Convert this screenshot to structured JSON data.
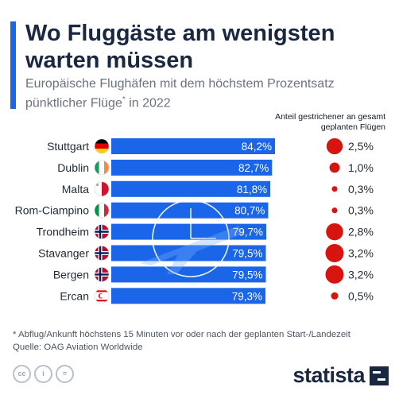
{
  "header": {
    "title": "Wo Fluggäste am wenigsten warten müssen",
    "subtitle": "Europäische Flughäfen mit dem höchstem Prozentsatz pünktlicher Flüge",
    "subtitle_mark": "*",
    "subtitle_tail": " in 2022"
  },
  "column_header": "Anteil gestrichener an gesamt geplanten Flügen",
  "chart_data": {
    "type": "bar",
    "orientation": "horizontal",
    "categories": [
      "Stuttgart",
      "Dublin",
      "Malta",
      "Rom-Ciampino",
      "Trondheim",
      "Stavanger",
      "Bergen",
      "Ercan"
    ],
    "value_labels": [
      "84,2%",
      "82,7%",
      "81,8%",
      "80,7%",
      "79,7%",
      "79,5%",
      "79,5%",
      "79,3%"
    ],
    "series": [
      {
        "values": [
          84.2,
          82.7,
          81.8,
          80.7,
          79.7,
          79.5,
          79.5,
          79.3
        ]
      },
      {
        "name": "Anteil gestrichener an gesamt geplanten Flügen",
        "values": [
          2.5,
          1.0,
          0.3,
          0.3,
          2.8,
          3.2,
          3.2,
          0.5
        ],
        "labels": [
          "2,5%",
          "1,0%",
          "0,3%",
          "0,3%",
          "2,8%",
          "3,2%",
          "3,2%",
          "0,5%"
        ]
      }
    ],
    "flags": [
      "germany-flag-icon",
      "ireland-flag-icon",
      "malta-flag-icon",
      "italy-flag-icon",
      "norway-flag-icon",
      "norway-flag-icon",
      "norway-flag-icon",
      "north-cyprus-flag-icon"
    ],
    "xlim": [
      0,
      84.2
    ],
    "grid": false,
    "legend": "none"
  },
  "footer": {
    "footnote": "* Abflug/Ankunft höchstens 15 Minuten vor oder nach der geplanten Start-/Landezeit",
    "source": "Quelle: OAG Aviation Worldwide",
    "logo": "statista"
  },
  "icons": [
    "creative-commons-icon",
    "attribution-icon",
    "no-derivatives-icon",
    "statista-logo-icon"
  ],
  "colors": {
    "bar": "#1a65e8",
    "dot": "#d7140f",
    "title": "#1a2740",
    "accent": "#1a65e8"
  }
}
